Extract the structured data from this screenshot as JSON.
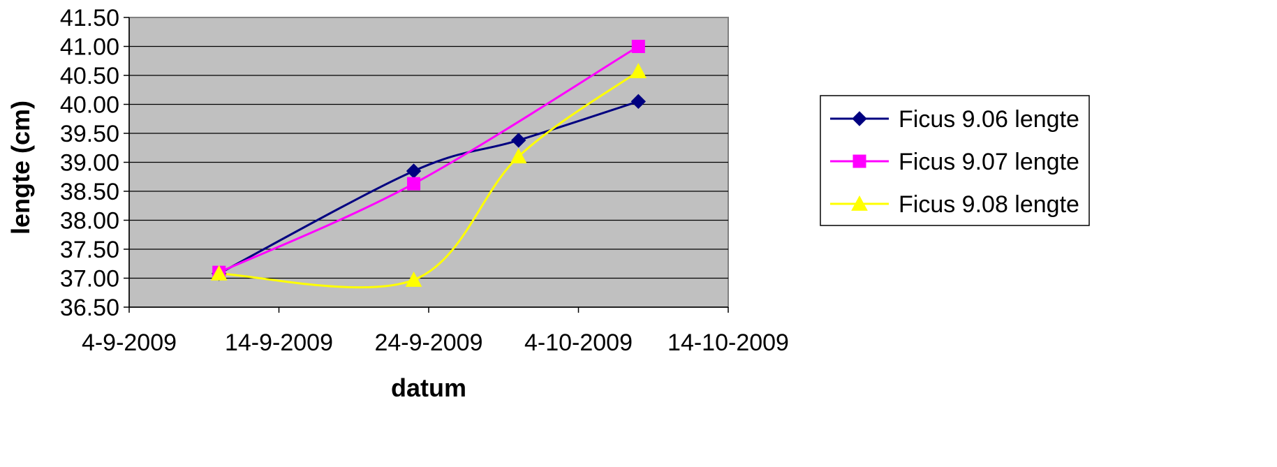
{
  "chart_data": {
    "type": "line",
    "title": "",
    "xlabel": "datum",
    "ylabel": "lengte (cm)",
    "x_ticks": [
      "4-9-2009",
      "14-9-2009",
      "24-9-2009",
      "4-10-2009",
      "14-10-2009"
    ],
    "x_range": [
      "2009-09-04",
      "2009-10-14"
    ],
    "y_ticks": [
      "36.50",
      "37.00",
      "37.50",
      "38.00",
      "38.50",
      "39.00",
      "39.50",
      "40.00",
      "40.50",
      "41.00",
      "41.50"
    ],
    "ylim": [
      36.5,
      41.5
    ],
    "grid": "horizontal",
    "legend_position": "right",
    "smoothed": true,
    "plot_background": "#c0c0c0",
    "series": [
      {
        "name": "Ficus 9.06 lengte",
        "color": "#000080",
        "marker": "diamond",
        "points": [
          {
            "x": "2009-09-10",
            "y": 37.08
          },
          {
            "x": "2009-09-23",
            "y": 38.85
          },
          {
            "x": "2009-09-30",
            "y": 39.38
          },
          {
            "x": "2009-10-08",
            "y": 40.05
          }
        ]
      },
      {
        "name": "Ficus 9.07 lengte",
        "color": "#ff00ff",
        "marker": "square",
        "points": [
          {
            "x": "2009-09-10",
            "y": 37.1
          },
          {
            "x": "2009-09-23",
            "y": 38.63
          },
          {
            "x": "2009-10-08",
            "y": 41.0
          }
        ]
      },
      {
        "name": "Ficus 9.08 lengte",
        "color": "#ffff00",
        "marker": "triangle",
        "points": [
          {
            "x": "2009-09-10",
            "y": 37.08
          },
          {
            "x": "2009-09-23",
            "y": 36.97
          },
          {
            "x": "2009-09-30",
            "y": 39.1
          },
          {
            "x": "2009-10-08",
            "y": 40.57
          }
        ]
      }
    ]
  }
}
